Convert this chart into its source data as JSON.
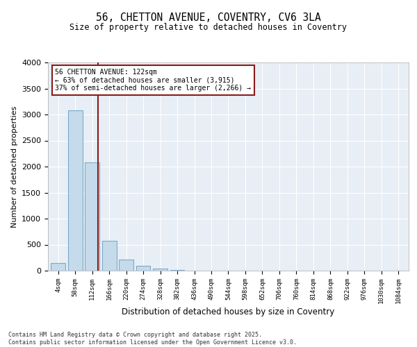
{
  "title": "56, CHETTON AVENUE, COVENTRY, CV6 3LA",
  "subtitle": "Size of property relative to detached houses in Coventry",
  "xlabel": "Distribution of detached houses by size in Coventry",
  "ylabel": "Number of detached properties",
  "categories": [
    "4sqm",
    "58sqm",
    "112sqm",
    "166sqm",
    "220sqm",
    "274sqm",
    "328sqm",
    "382sqm",
    "436sqm",
    "490sqm",
    "544sqm",
    "598sqm",
    "652sqm",
    "706sqm",
    "760sqm",
    "814sqm",
    "868sqm",
    "922sqm",
    "976sqm",
    "1030sqm",
    "1084sqm"
  ],
  "values": [
    150,
    3075,
    2075,
    575,
    220,
    95,
    45,
    10,
    5,
    2,
    1,
    0,
    0,
    0,
    0,
    0,
    0,
    0,
    0,
    0,
    0
  ],
  "bar_color": "#c5daea",
  "bar_edge_color": "#7baac8",
  "vline_color": "#8b1a1a",
  "vline_pos": 2.35,
  "annotation_box_color": "#8b1a1a",
  "annotation_text_line1": "56 CHETTON AVENUE: 122sqm",
  "annotation_text_line2": "← 63% of detached houses are smaller (3,915)",
  "annotation_text_line3": "37% of semi-detached houses are larger (2,266) →",
  "ylim": [
    0,
    4000
  ],
  "yticks": [
    0,
    500,
    1000,
    1500,
    2000,
    2500,
    3000,
    3500,
    4000
  ],
  "background_color": "#e8eef5",
  "footer_line1": "Contains HM Land Registry data © Crown copyright and database right 2025.",
  "footer_line2": "Contains public sector information licensed under the Open Government Licence v3.0."
}
